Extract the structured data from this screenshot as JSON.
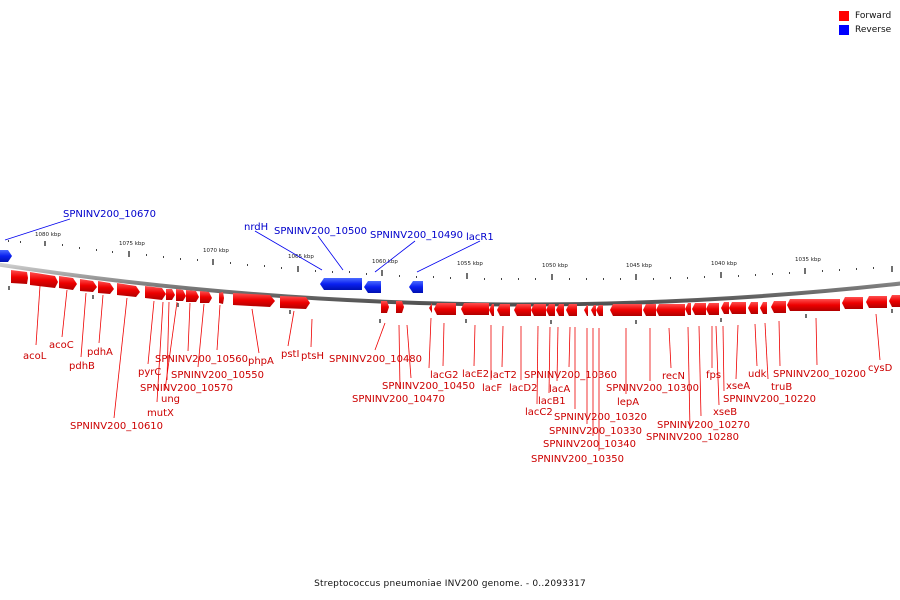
{
  "legend": {
    "forward_label": "Forward",
    "reverse_label": "Reverse",
    "forward_color": "#ff0000",
    "reverse_color": "#0000ff"
  },
  "footer": {
    "text": "Streptococcus pneumoniae INV200 genome. - 0..2093317"
  },
  "scale": {
    "ticks": [
      "1080 kbp",
      "1075 kbp",
      "1070 kbp",
      "1065 kbp",
      "1060 kbp",
      "1055 kbp",
      "1050 kbp",
      "1045 kbp",
      "1040 kbp",
      "1035 kbp"
    ]
  },
  "reverse_genes": [
    {
      "name": "SPNINV200_10670"
    },
    {
      "name": "nrdH"
    },
    {
      "name": "SPNINV200_10500"
    },
    {
      "name": "SPNINV200_10490"
    },
    {
      "name": "lacR1"
    }
  ],
  "forward_genes": [
    {
      "name": "acoL"
    },
    {
      "name": "acoC"
    },
    {
      "name": "pdhB"
    },
    {
      "name": "pdhA"
    },
    {
      "name": "SPNINV200_10610"
    },
    {
      "name": "pyrC"
    },
    {
      "name": "mutX"
    },
    {
      "name": "SPNINV200_10570"
    },
    {
      "name": "ung"
    },
    {
      "name": "SPNINV200_10560"
    },
    {
      "name": "SPNINV200_10550"
    },
    {
      "name": "phpA"
    },
    {
      "name": "pstI"
    },
    {
      "name": "ptsH"
    },
    {
      "name": "SPNINV200_10480"
    },
    {
      "name": "SPNINV200_10470"
    },
    {
      "name": "SPNINV200_10450"
    },
    {
      "name": "lacG2"
    },
    {
      "name": "lacE2"
    },
    {
      "name": "lacF"
    },
    {
      "name": "lacT2"
    },
    {
      "name": "lacD2"
    },
    {
      "name": "lacC2"
    },
    {
      "name": "lacB1"
    },
    {
      "name": "lacA"
    },
    {
      "name": "SPNINV200_10360"
    },
    {
      "name": "SPNINV200_10320"
    },
    {
      "name": "SPNINV200_10330"
    },
    {
      "name": "SPNINV200_10340"
    },
    {
      "name": "SPNINV200_10350"
    },
    {
      "name": "lepA"
    },
    {
      "name": "SPNINV200_10300"
    },
    {
      "name": "recN"
    },
    {
      "name": "SPNINV200_10280"
    },
    {
      "name": "SPNINV200_10270"
    },
    {
      "name": "fps"
    },
    {
      "name": "xseB"
    },
    {
      "name": "xseA"
    },
    {
      "name": "SPNINV200_10220"
    },
    {
      "name": "udk"
    },
    {
      "name": "truB"
    },
    {
      "name": "SPNINV200_10200"
    },
    {
      "name": "cysD"
    }
  ]
}
